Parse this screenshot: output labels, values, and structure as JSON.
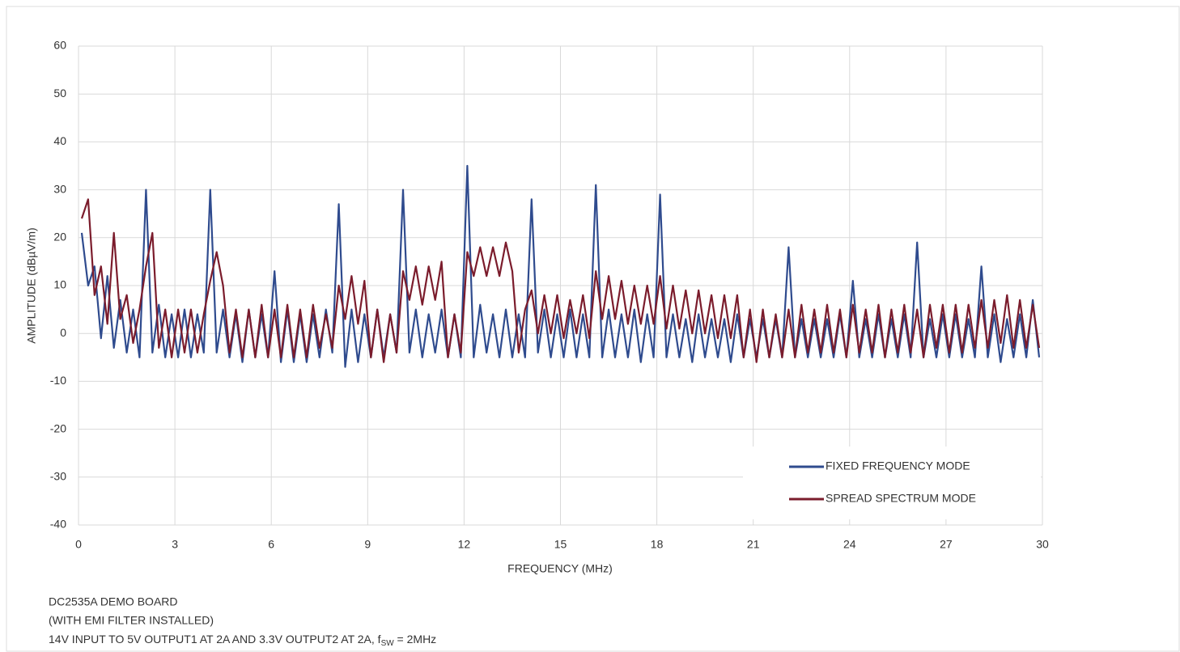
{
  "chart_data": {
    "type": "line",
    "xlabel": "FREQUENCY (MHz)",
    "ylabel": "AMPLITUDE (dBµV/m)",
    "xlim": [
      0,
      30
    ],
    "xticks": [
      0,
      3,
      6,
      9,
      12,
      15,
      18,
      21,
      24,
      27,
      30
    ],
    "ylim": [
      -40,
      60
    ],
    "yticks": [
      -40,
      -30,
      -20,
      -10,
      0,
      10,
      20,
      30,
      40,
      50,
      60
    ],
    "grid": true,
    "legend": "lower right",
    "x": [
      0.1,
      0.3,
      0.5,
      0.7,
      0.9,
      1.1,
      1.3,
      1.5,
      1.7,
      1.9,
      2.1,
      2.3,
      2.5,
      2.7,
      2.9,
      3.1,
      3.3,
      3.5,
      3.7,
      3.9,
      4.1,
      4.3,
      4.5,
      4.7,
      4.9,
      5.1,
      5.3,
      5.5,
      5.7,
      5.9,
      6.1,
      6.3,
      6.5,
      6.7,
      6.9,
      7.1,
      7.3,
      7.5,
      7.7,
      7.9,
      8.1,
      8.3,
      8.5,
      8.7,
      8.9,
      9.1,
      9.3,
      9.5,
      9.7,
      9.9,
      10.1,
      10.3,
      10.5,
      10.7,
      10.9,
      11.1,
      11.3,
      11.5,
      11.7,
      11.9,
      12.1,
      12.3,
      12.5,
      12.7,
      12.9,
      13.1,
      13.3,
      13.5,
      13.7,
      13.9,
      14.1,
      14.3,
      14.5,
      14.7,
      14.9,
      15.1,
      15.3,
      15.5,
      15.7,
      15.9,
      16.1,
      16.3,
      16.5,
      16.7,
      16.9,
      17.1,
      17.3,
      17.5,
      17.7,
      17.9,
      18.1,
      18.3,
      18.5,
      18.7,
      18.9,
      19.1,
      19.3,
      19.5,
      19.7,
      19.9,
      20.1,
      20.3,
      20.5,
      20.7,
      20.9,
      21.1,
      21.3,
      21.5,
      21.7,
      21.9,
      22.1,
      22.3,
      22.5,
      22.7,
      22.9,
      23.1,
      23.3,
      23.5,
      23.7,
      23.9,
      24.1,
      24.3,
      24.5,
      24.7,
      24.9,
      25.1,
      25.3,
      25.5,
      25.7,
      25.9,
      26.1,
      26.3,
      26.5,
      26.7,
      26.9,
      27.1,
      27.3,
      27.5,
      27.7,
      27.9,
      28.1,
      28.3,
      28.5,
      28.7,
      28.9,
      29.1,
      29.3,
      29.5,
      29.7,
      29.9
    ],
    "series": [
      {
        "name": "FIXED FREQUENCY MODE",
        "color": "#2f4b8e",
        "values": [
          21,
          10,
          14,
          -1,
          12,
          -3,
          7,
          -4,
          5,
          -5,
          30,
          -4,
          6,
          -5,
          4,
          -5,
          5,
          -5,
          4,
          -4,
          30,
          -4,
          5,
          -5,
          4,
          -6,
          5,
          -5,
          4,
          -5,
          13,
          -6,
          5,
          -6,
          4,
          -6,
          4,
          -5,
          5,
          -4,
          27,
          -7,
          5,
          -6,
          4,
          -5,
          5,
          -5,
          4,
          -4,
          30,
          -4,
          5,
          -5,
          4,
          -4,
          5,
          -5,
          4,
          -5,
          35,
          -5,
          6,
          -4,
          4,
          -5,
          5,
          -5,
          4,
          -5,
          28,
          -4,
          5,
          -5,
          4,
          -5,
          5,
          -5,
          4,
          -5,
          31,
          -5,
          5,
          -5,
          4,
          -5,
          5,
          -6,
          4,
          -5,
          29,
          -5,
          4,
          -5,
          3,
          -6,
          4,
          -5,
          3,
          -5,
          3,
          -6,
          4,
          -5,
          3,
          -5,
          3,
          -5,
          3,
          -5,
          18,
          -5,
          3,
          -5,
          3,
          -5,
          3,
          -5,
          4,
          -5,
          11,
          -5,
          3,
          -5,
          4,
          -5,
          3,
          -5,
          4,
          -5,
          19,
          -5,
          3,
          -5,
          4,
          -5,
          4,
          -5,
          3,
          -5,
          14,
          -5,
          4,
          -6,
          3,
          -5,
          4,
          -5,
          7,
          -5
        ]
      },
      {
        "name": "SPREAD SPECTRUM MODE",
        "color": "#7b1c2c",
        "values": [
          24,
          28,
          8,
          14,
          2,
          21,
          3,
          8,
          -2,
          5,
          14,
          21,
          -3,
          5,
          -5,
          5,
          -4,
          5,
          -4,
          4,
          11,
          17,
          10,
          -4,
          5,
          -5,
          5,
          -5,
          6,
          -5,
          5,
          -5,
          6,
          -5,
          5,
          -5,
          6,
          -3,
          4,
          -3,
          10,
          3,
          12,
          2,
          11,
          -5,
          5,
          -6,
          4,
          -4,
          13,
          7,
          14,
          6,
          14,
          7,
          15,
          -5,
          4,
          -4,
          17,
          12,
          18,
          12,
          18,
          12,
          19,
          13,
          -4,
          5,
          9,
          0,
          8,
          0,
          8,
          -1,
          7,
          0,
          8,
          -1,
          13,
          3,
          12,
          3,
          11,
          2,
          10,
          2,
          10,
          2,
          12,
          1,
          10,
          1,
          9,
          0,
          9,
          0,
          8,
          -1,
          8,
          -1,
          8,
          -5,
          5,
          -6,
          5,
          -5,
          4,
          -5,
          5,
          -5,
          6,
          -4,
          5,
          -4,
          6,
          -4,
          5,
          -5,
          6,
          -4,
          5,
          -4,
          6,
          -5,
          5,
          -4,
          6,
          -4,
          5,
          -5,
          6,
          -3,
          6,
          -4,
          6,
          -4,
          6,
          -3,
          7,
          -3,
          7,
          -2,
          8,
          -3,
          7,
          -3,
          6,
          -3
        ]
      }
    ]
  },
  "notes": [
    "DC2535A DEMO BOARD",
    "(WITH EMI FILTER INSTALLED)",
    "14V INPUT TO 5V OUTPUT1 AT 2A AND 3.3V OUTPUT2 AT 2A, f"
  ],
  "note_sub": "SW",
  "note_tail": " = 2MHz"
}
